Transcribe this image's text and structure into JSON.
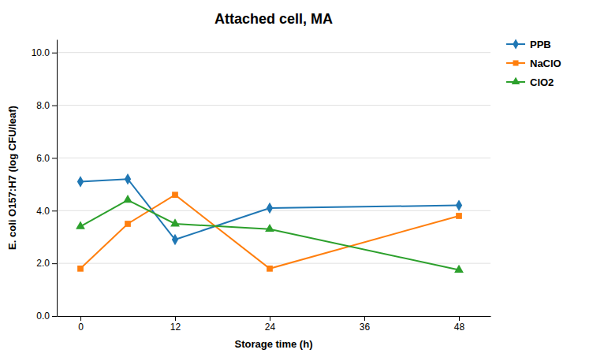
{
  "chart_data": {
    "type": "line",
    "title": "Attached cell, MA",
    "xlabel": "Storage time (h)",
    "ylabel": "E. coli O157:H7 (log CFU/leaf)",
    "x": [
      0,
      6,
      12,
      24,
      48
    ],
    "series": [
      {
        "name": "PPB",
        "values": [
          5.1,
          5.2,
          2.9,
          4.1,
          4.2
        ],
        "marker": "diamond"
      },
      {
        "name": "NaClO",
        "values": [
          1.8,
          3.5,
          4.6,
          1.8,
          3.8
        ],
        "marker": "square"
      },
      {
        "name": "ClO2",
        "values": [
          3.4,
          4.4,
          3.5,
          3.3,
          1.75
        ],
        "marker": "triangle"
      }
    ],
    "xlim": [
      -3,
      52
    ],
    "xticks": [
      0,
      12,
      24,
      36,
      48
    ],
    "ylim": [
      0.0,
      10.5
    ],
    "yticks": [
      {
        "value": 0.0,
        "label": "0.0"
      },
      {
        "value": 2.0,
        "label": "2.0"
      },
      {
        "value": 4.0,
        "label": "4.0"
      },
      {
        "value": 6.0,
        "label": "6.0"
      },
      {
        "value": 8.0,
        "label": "8.0"
      },
      {
        "value": 10.0,
        "label": "10.0"
      }
    ],
    "grid": true,
    "legend": "right"
  }
}
